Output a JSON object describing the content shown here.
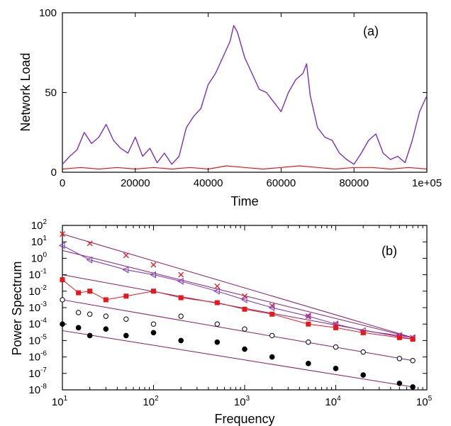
{
  "colors": {
    "purple": "#7b2fbe",
    "red": "#e8171c",
    "black": "#000000",
    "fit_line": "#8b1a6b"
  },
  "chart_data": [
    {
      "type": "line",
      "panel_label": "(a)",
      "xlabel": "Time",
      "ylabel": "Network Load",
      "xlim": [
        0,
        100000
      ],
      "ylim": [
        0,
        100
      ],
      "xticks": [
        0,
        20000,
        40000,
        60000,
        80000,
        100000
      ],
      "xtick_labels": [
        "0",
        "20000",
        "40000",
        "60000",
        "80000",
        "1e+05"
      ],
      "yticks": [
        0,
        50,
        100
      ],
      "ytick_labels": [
        "0",
        "50",
        "100"
      ],
      "series": [
        {
          "color": "#7b2fbe",
          "x": [
            0,
            2000,
            4000,
            6000,
            8000,
            10000,
            12000,
            14000,
            16000,
            18000,
            20000,
            22000,
            24000,
            26000,
            28000,
            30000,
            32000,
            34000,
            36000,
            38000,
            40000,
            42000,
            44000,
            46000,
            47000,
            48000,
            50000,
            52000,
            54000,
            56000,
            58000,
            60000,
            62000,
            64000,
            66000,
            67000,
            68000,
            70000,
            72000,
            74000,
            76000,
            78000,
            80000,
            82000,
            84000,
            86000,
            88000,
            90000,
            92000,
            94000,
            96000,
            98000,
            100000
          ],
          "y": [
            5,
            10,
            14,
            25,
            18,
            22,
            30,
            20,
            15,
            12,
            22,
            10,
            15,
            6,
            12,
            5,
            10,
            28,
            35,
            40,
            55,
            62,
            72,
            82,
            92,
            88,
            72,
            62,
            52,
            50,
            44,
            38,
            50,
            58,
            62,
            68,
            48,
            28,
            22,
            20,
            12,
            8,
            5,
            12,
            20,
            24,
            12,
            8,
            10,
            6,
            20,
            38,
            48
          ]
        },
        {
          "color": "#e8171c",
          "x": [
            0,
            5000,
            10000,
            15000,
            20000,
            25000,
            30000,
            35000,
            40000,
            45000,
            50000,
            55000,
            60000,
            65000,
            70000,
            75000,
            80000,
            85000,
            90000,
            95000,
            100000
          ],
          "y": [
            2,
            3,
            2,
            3,
            2,
            3,
            2,
            3,
            2,
            4,
            3,
            2,
            3,
            4,
            3,
            2,
            3,
            3,
            2,
            3,
            2
          ]
        }
      ]
    },
    {
      "type": "scatter",
      "panel_label": "(b)",
      "xlabel": "Frequency",
      "ylabel": "Power Spectrum",
      "xscale": "log",
      "yscale": "log",
      "xlim": [
        10,
        100000
      ],
      "ylim": [
        1e-08,
        100
      ],
      "xtick_labels": [
        {
          "base": "10",
          "exp": "1"
        },
        {
          "base": "10",
          "exp": "2"
        },
        {
          "base": "10",
          "exp": "3"
        },
        {
          "base": "10",
          "exp": "4"
        },
        {
          "base": "10",
          "exp": "5"
        }
      ],
      "ytick_labels": [
        {
          "base": "10",
          "exp": "-8"
        },
        {
          "base": "10",
          "exp": "-7"
        },
        {
          "base": "10",
          "exp": "-6"
        },
        {
          "base": "10",
          "exp": "-5"
        },
        {
          "base": "10",
          "exp": "-4"
        },
        {
          "base": "10",
          "exp": "-3"
        },
        {
          "base": "10",
          "exp": "-2"
        },
        {
          "base": "10",
          "exp": "-1"
        },
        {
          "base": "10",
          "exp": "0"
        },
        {
          "base": "10",
          "exp": "1"
        },
        {
          "base": "10",
          "exp": "2"
        }
      ],
      "series": [
        {
          "marker": "cross",
          "color": "#e8171c",
          "fit": {
            "x": [
              10,
              70000
            ],
            "y": [
              30,
              1.5e-05
            ]
          },
          "x": [
            10,
            20,
            50,
            100,
            200,
            500,
            1000,
            2000,
            5000,
            10000,
            20000,
            50000,
            70000
          ],
          "y": [
            30,
            8,
            1.5,
            0.4,
            0.1,
            0.02,
            0.005,
            0.0013,
            0.0003,
            0.0001,
            3e-05,
            1.8e-05,
            1.5e-05
          ]
        },
        {
          "marker": "open-triangle",
          "color": "#7b2fbe",
          "fit": {
            "x": [
              10,
              70000
            ],
            "y": [
              3,
              1.5e-05
            ]
          },
          "x": [
            10,
            20,
            50,
            100,
            200,
            500,
            1000,
            2000,
            5000,
            10000,
            20000,
            50000,
            70000
          ],
          "y": [
            6,
            0.8,
            0.2,
            0.1,
            0.04,
            0.01,
            0.003,
            0.001,
            0.0003,
            0.0001,
            4e-05,
            2e-05,
            1.5e-05
          ]
        },
        {
          "marker": "filled-square",
          "color": "#e8171c",
          "fit": {
            "x": [
              10,
              70000
            ],
            "y": [
              0.1,
              1.2e-05
            ]
          },
          "x": [
            10,
            15,
            20,
            30,
            50,
            100,
            200,
            500,
            1000,
            2000,
            5000,
            10000,
            20000,
            50000,
            70000
          ],
          "y": [
            0.05,
            0.008,
            0.01,
            0.003,
            0.005,
            0.01,
            0.004,
            0.002,
            0.0008,
            0.0004,
            0.0001,
            6e-05,
            3e-05,
            1.5e-05,
            1.2e-05
          ]
        },
        {
          "marker": "open-circle",
          "color": "#000000",
          "fit": {
            "x": [
              10,
              70000
            ],
            "y": [
              0.003,
              6e-07
            ]
          },
          "x": [
            10,
            15,
            20,
            30,
            50,
            100,
            200,
            500,
            1000,
            2000,
            5000,
            10000,
            20000,
            50000,
            70000
          ],
          "y": [
            0.003,
            0.0005,
            0.0004,
            0.0003,
            0.0002,
            0.0001,
            0.0003,
            0.0001,
            5e-05,
            2e-05,
            8e-06,
            4e-06,
            2e-06,
            8e-07,
            6e-07
          ]
        },
        {
          "marker": "filled-circle",
          "color": "#000000",
          "fit": {
            "x": [
              10,
              70000
            ],
            "y": [
              4e-05,
              1.5e-08
            ]
          },
          "x": [
            10,
            15,
            20,
            30,
            50,
            100,
            200,
            500,
            1000,
            2000,
            5000,
            10000,
            20000,
            50000,
            70000
          ],
          "y": [
            0.0001,
            6e-05,
            2e-05,
            5e-05,
            2e-05,
            3e-05,
            1e-05,
            8e-06,
            3e-06,
            1e-06,
            4e-07,
            2e-07,
            8e-08,
            2.5e-08,
            1.5e-08
          ]
        }
      ]
    }
  ]
}
